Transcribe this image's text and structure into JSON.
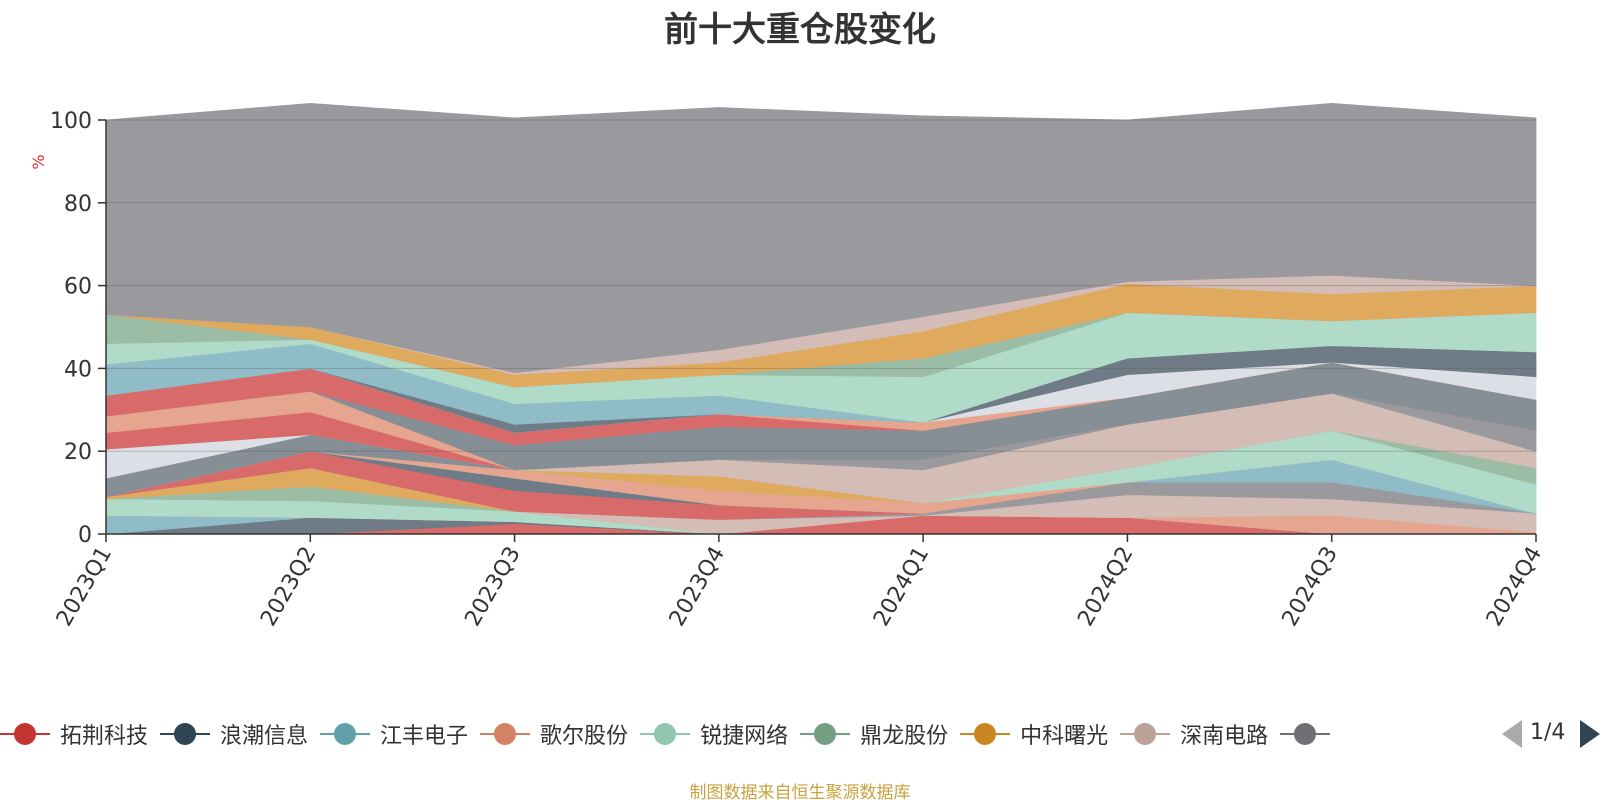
{
  "chart_data": {
    "type": "area",
    "title": "前十大重仓股变化",
    "ylabel": "%",
    "ylim": [
      0,
      100
    ],
    "yticks": [
      0,
      20,
      40,
      60,
      80,
      100
    ],
    "categories": [
      "2023Q1",
      "2023Q2",
      "2023Q3",
      "2023Q4",
      "2024Q1",
      "2024Q2",
      "2024Q3",
      "2024Q4"
    ],
    "grid": true,
    "stacked": true,
    "series": [
      {
        "name": "拓荆科技",
        "color": "#d96a6a",
        "values": [
          0.0,
          0.0,
          2.5,
          0.0,
          4.5,
          4.0,
          0.0,
          0.0
        ]
      },
      {
        "name": "浪潮信息",
        "color": "#6f7b86",
        "values": [
          0.0,
          4.0,
          0.5,
          0.0,
          0.0,
          0.0,
          0.0,
          0.0
        ]
      },
      {
        "name": "江丰电子",
        "color": "#8fbcc6",
        "values": [
          4.5,
          0.0,
          0.0,
          0.0,
          0.0,
          0.0,
          0.0,
          0.0
        ]
      },
      {
        "name": "歌尔股份",
        "color": "#e5a58f",
        "values": [
          0.0,
          0.0,
          0.0,
          0.0,
          0.0,
          0.0,
          4.5,
          0.5
        ]
      },
      {
        "name": "锐捷网络",
        "color": "#b0dbc8",
        "values": [
          4.0,
          4.0,
          2.5,
          0.0,
          0.0,
          0.0,
          0.0,
          0.0
        ]
      },
      {
        "name": "鼎龙股份",
        "color": "#9bbda5",
        "values": [
          0.0,
          3.5,
          0.0,
          0.0,
          0.0,
          0.0,
          0.0,
          0.0
        ]
      },
      {
        "name": "中科曙光",
        "color": "#dfa95e",
        "values": [
          0.5,
          4.5,
          0.0,
          0.0,
          0.0,
          0.0,
          0.0,
          0.0
        ]
      },
      {
        "name": "深南电路",
        "color": "#d4bdb7",
        "values": [
          0.0,
          0.0,
          0.0,
          3.5,
          0.0,
          5.5,
          4.0,
          4.5
        ]
      },
      {
        "name": "",
        "color": "#9a9a9e",
        "values": [
          0.0,
          0.0,
          0.0,
          0.0,
          0.5,
          3.0,
          4.0,
          0.0
        ]
      },
      {
        "name": "",
        "color": "#d96a6a",
        "values": [
          0.0,
          4.0,
          5.0,
          3.5,
          0.0,
          0.0,
          0.0,
          0.0
        ]
      },
      {
        "name": "",
        "color": "#6f7b86",
        "values": [
          0.0,
          0.0,
          3.0,
          0.0,
          0.0,
          0.0,
          0.0,
          0.0
        ]
      },
      {
        "name": "",
        "color": "#8fbcc6",
        "values": [
          0.0,
          0.0,
          0.0,
          0.0,
          0.0,
          0.0,
          5.5,
          0.0
        ]
      },
      {
        "name": "",
        "color": "#e5a58f",
        "values": [
          0.0,
          0.0,
          2.0,
          3.5,
          2.5,
          0.0,
          0.0,
          0.0
        ]
      },
      {
        "name": "",
        "color": "#b0dbc8",
        "values": [
          0.0,
          0.0,
          0.0,
          0.0,
          0.0,
          3.5,
          7.0,
          7.0
        ]
      },
      {
        "name": "",
        "color": "#9bbda5",
        "values": [
          0.0,
          0.0,
          0.0,
          0.0,
          0.0,
          0.0,
          0.0,
          4.0
        ]
      },
      {
        "name": "",
        "color": "#dfa95e",
        "values": [
          0.0,
          0.0,
          0.0,
          3.5,
          0.0,
          0.0,
          0.0,
          0.0
        ]
      },
      {
        "name": "",
        "color": "#d4bdb7",
        "values": [
          0.0,
          0.0,
          0.0,
          4.0,
          8.0,
          10.5,
          9.0,
          4.0
        ]
      },
      {
        "name": "",
        "color": "#9a9a9e",
        "values": [
          0.0,
          0.0,
          0.0,
          0.0,
          2.5,
          0.0,
          0.0,
          5.0
        ]
      },
      {
        "name": "",
        "color": "#868f96",
        "values": [
          4.5,
          4.0,
          0.0,
          0.0,
          0.0,
          0.0,
          0.0,
          0.0
        ]
      },
      {
        "name": "",
        "color": "#dce0e6",
        "values": [
          7.0,
          0.0,
          0.0,
          0.0,
          0.0,
          0.0,
          0.0,
          0.0
        ]
      },
      {
        "name": "",
        "color": "#d96a6a",
        "values": [
          4.0,
          5.5,
          0.0,
          0.0,
          0.0,
          0.0,
          0.0,
          0.0
        ]
      },
      {
        "name": "",
        "color": "#e5a58f",
        "values": [
          4.0,
          5.0,
          0.0,
          0.0,
          0.0,
          0.0,
          0.0,
          0.0
        ]
      },
      {
        "name": "",
        "color": "#868f96",
        "values": [
          0.0,
          0.0,
          6.0,
          8.0,
          7.0,
          6.5,
          7.5,
          7.5
        ]
      },
      {
        "name": "",
        "color": "#d96a6a",
        "values": [
          5.0,
          5.5,
          3.0,
          3.0,
          0.0,
          0.0,
          0.0,
          0.0
        ]
      },
      {
        "name": "",
        "color": "#e5a58f",
        "values": [
          0.0,
          0.0,
          0.0,
          0.0,
          2.0,
          0.0,
          0.0,
          0.0
        ]
      },
      {
        "name": "",
        "color": "#dce0e6",
        "values": [
          0.0,
          0.0,
          0.0,
          0.0,
          0.0,
          5.5,
          0.0,
          5.5
        ]
      },
      {
        "name": "",
        "color": "#6f7b86",
        "values": [
          0.0,
          0.0,
          2.0,
          0.0,
          0.0,
          4.0,
          4.0,
          6.0
        ]
      },
      {
        "name": "",
        "color": "#8fbcc6",
        "values": [
          7.5,
          6.0,
          5.0,
          4.5,
          0.0,
          0.0,
          0.0,
          0.0
        ]
      },
      {
        "name": "",
        "color": "#b0dbc8",
        "values": [
          5.0,
          1.0,
          4.0,
          5.0,
          11.0,
          11.0,
          6.0,
          9.5
        ]
      },
      {
        "name": "",
        "color": "#9bbda5",
        "values": [
          7.0,
          0.0,
          0.0,
          0.0,
          4.5,
          0.0,
          0.0,
          0.0
        ]
      },
      {
        "name": "",
        "color": "#dfa95e",
        "values": [
          0.0,
          3.0,
          3.0,
          3.0,
          6.5,
          7.0,
          6.5,
          6.5
        ]
      },
      {
        "name": "",
        "color": "#d4bdb7",
        "values": [
          0.0,
          0.0,
          0.5,
          3.0,
          3.5,
          0.5,
          4.5,
          0.0
        ]
      },
      {
        "name": "",
        "color": "#9a9a9e",
        "values": [
          47.0,
          54.0,
          61.5,
          58.5,
          48.5,
          39.0,
          41.5,
          40.5
        ]
      }
    ]
  },
  "legend_items": [
    {
      "label": "拓荆科技",
      "color": "#c23531"
    },
    {
      "label": "浪潮信息",
      "color": "#2f4554"
    },
    {
      "label": "江丰电子",
      "color": "#61a0a8"
    },
    {
      "label": "歌尔股份",
      "color": "#d48265"
    },
    {
      "label": "锐捷网络",
      "color": "#91c7ae"
    },
    {
      "label": "鼎龙股份",
      "color": "#749f83"
    },
    {
      "label": "中科曙光",
      "color": "#ca8622"
    },
    {
      "label": "深南电路",
      "color": "#bda29a"
    },
    {
      "label": "",
      "color": "#6e7074"
    }
  ],
  "pager": {
    "text": "1/4"
  },
  "source_note": "制图数据来自恒生聚源数据库"
}
